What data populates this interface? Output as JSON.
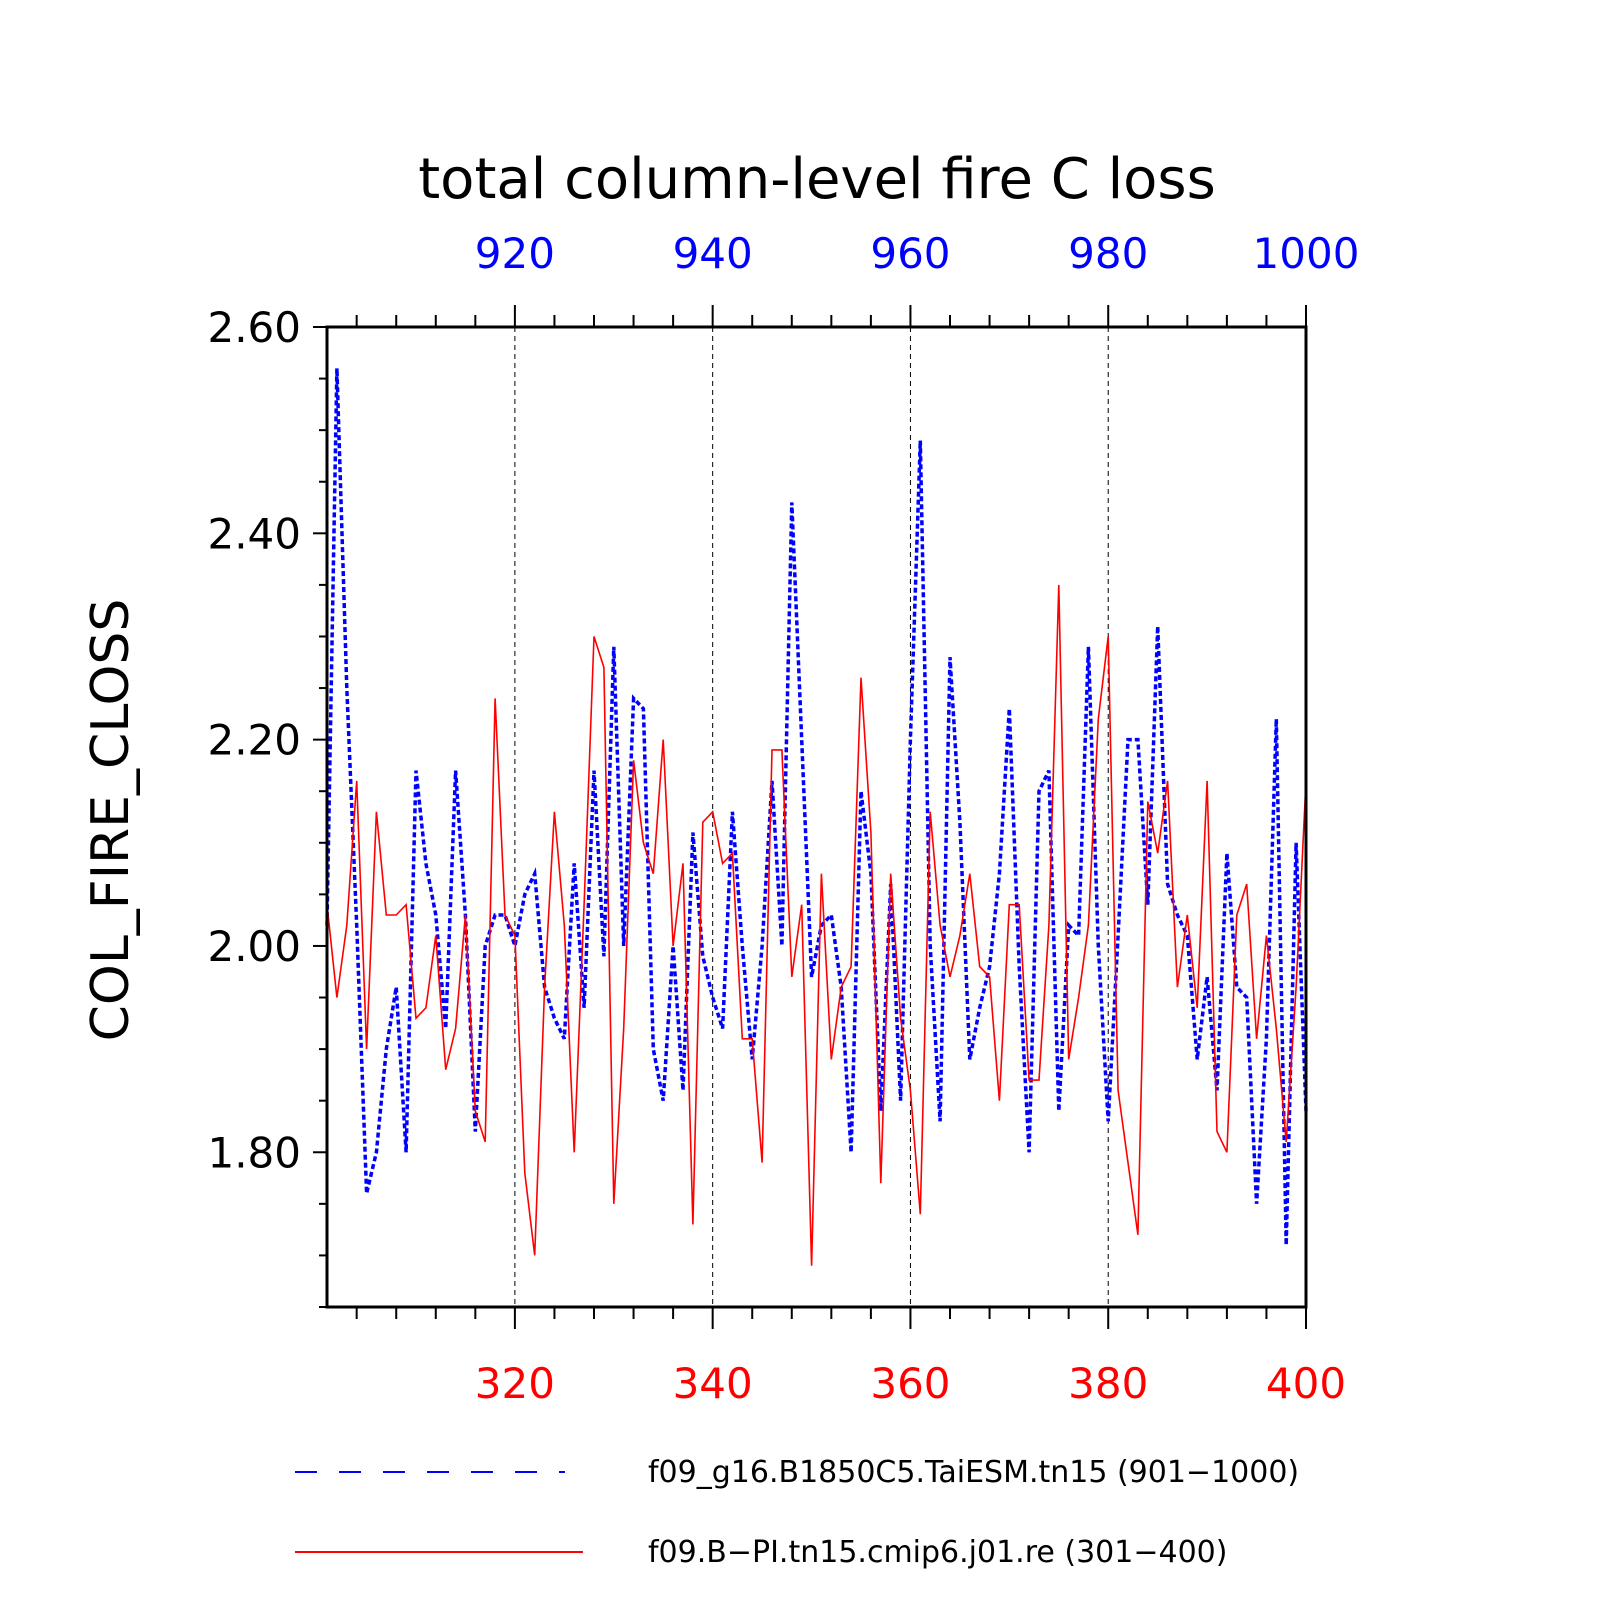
{
  "chart_data": {
    "type": "line",
    "title": "total column-level fire C loss",
    "ylabel": "COL_FIRE_CLOSS",
    "ylim": [
      1.65,
      2.6
    ],
    "y_ticks": [
      "2.60",
      "2.40",
      "2.20",
      "2.00",
      "1.80"
    ],
    "y_tick_values": [
      2.6,
      2.4,
      2.2,
      2.0,
      1.8
    ],
    "colors": {
      "blue": "#0000ff",
      "red": "#ff0000"
    },
    "grid": "vertical dashed at major x ticks",
    "legend_position": "bottom",
    "x_top": {
      "range": [
        901,
        1000
      ],
      "ticks": [
        "920",
        "940",
        "960",
        "980",
        "1000"
      ],
      "tick_values": [
        920,
        940,
        960,
        980,
        1000
      ]
    },
    "x_bottom": {
      "range": [
        301,
        400
      ],
      "ticks": [
        "320",
        "340",
        "360",
        "380",
        "400"
      ],
      "tick_values": [
        320,
        340,
        360,
        380,
        400
      ]
    },
    "series": [
      {
        "name": "f09_g16.B1850C5.TaiESM.tn15 (901−1000)",
        "axis": "top",
        "style": "dashed",
        "color": "#0000ff",
        "x_start": 901,
        "values": [
          2.02,
          2.56,
          2.25,
          2.02,
          1.76,
          1.8,
          1.9,
          1.96,
          1.8,
          2.17,
          2.08,
          2.03,
          1.92,
          2.17,
          2.03,
          1.82,
          2.0,
          2.03,
          2.03,
          2.0,
          2.05,
          2.07,
          1.96,
          1.93,
          1.91,
          2.08,
          1.94,
          2.17,
          1.99,
          2.29,
          2.0,
          2.24,
          2.23,
          1.9,
          1.85,
          2.0,
          1.86,
          2.11,
          1.99,
          1.95,
          1.92,
          2.13,
          2.0,
          1.89,
          2.0,
          2.16,
          2.0,
          2.43,
          2.2,
          1.97,
          2.02,
          2.03,
          1.96,
          1.8,
          2.15,
          2.07,
          1.84,
          2.06,
          1.85,
          2.2,
          2.49,
          2.0,
          1.83,
          2.28,
          2.12,
          1.89,
          1.94,
          1.98,
          2.07,
          2.23,
          1.98,
          1.8,
          2.15,
          2.17,
          1.84,
          2.02,
          2.01,
          2.29,
          2.0,
          1.83,
          2.01,
          2.2,
          2.2,
          2.04,
          2.31,
          2.06,
          2.03,
          2.01,
          1.89,
          1.97,
          1.86,
          2.09,
          1.96,
          1.95,
          1.75,
          1.91,
          2.22,
          1.71,
          2.1,
          1.84
        ]
      },
      {
        "name": "f09.B−PI.tn15.cmip6.j01.re (301−400)",
        "axis": "bottom",
        "style": "solid",
        "color": "#ff0000",
        "x_start": 301,
        "values": [
          2.04,
          1.95,
          2.02,
          2.16,
          1.9,
          2.13,
          2.03,
          2.03,
          2.04,
          1.93,
          1.94,
          2.01,
          1.88,
          1.92,
          2.03,
          1.84,
          1.81,
          2.24,
          2.03,
          2.01,
          1.78,
          1.7,
          1.96,
          2.13,
          2.02,
          1.8,
          2.04,
          2.3,
          2.27,
          1.75,
          1.92,
          2.18,
          2.1,
          2.07,
          2.2,
          2.0,
          2.08,
          1.73,
          2.12,
          2.13,
          2.08,
          2.09,
          1.91,
          1.91,
          1.79,
          2.19,
          2.19,
          1.97,
          2.04,
          1.69,
          2.07,
          1.89,
          1.96,
          1.98,
          2.26,
          2.11,
          1.77,
          2.07,
          1.93,
          1.86,
          1.74,
          2.13,
          2.02,
          1.97,
          2.01,
          2.07,
          1.98,
          1.97,
          1.85,
          2.04,
          2.04,
          1.87,
          1.87,
          2.02,
          2.35,
          1.89,
          1.95,
          2.02,
          2.22,
          2.3,
          1.86,
          1.79,
          1.72,
          2.14,
          2.09,
          2.16,
          1.96,
          2.03,
          1.94,
          2.16,
          1.82,
          1.8,
          2.03,
          2.06,
          1.91,
          2.01,
          1.92,
          1.81,
          1.96,
          2.16
        ]
      }
    ],
    "legend": [
      {
        "label": "f09_g16.B1850C5.TaiESM.tn15 (901−1000)",
        "style": "dashed",
        "color": "#0000ff"
      },
      {
        "label": "f09.B−PI.tn15.cmip6.j01.re (301−400)",
        "style": "solid",
        "color": "#ff0000"
      }
    ]
  }
}
